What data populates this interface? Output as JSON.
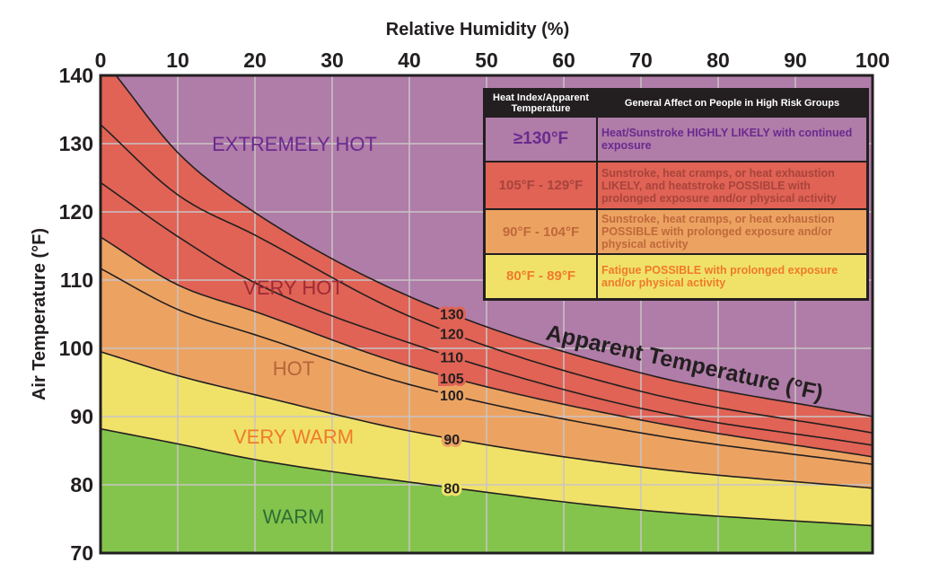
{
  "chart_data": {
    "type": "line",
    "title": "",
    "xlabel": "Relative Humidity (%)",
    "ylabel": "Air Temperature (°F)",
    "xlim": [
      0,
      100
    ],
    "ylim": [
      70,
      140
    ],
    "xticks": [
      "0",
      "10",
      "20",
      "30",
      "40",
      "50",
      "60",
      "70",
      "80",
      "90",
      "100"
    ],
    "yticks": [
      "70",
      "80",
      "90",
      "100",
      "110",
      "120",
      "130",
      "140"
    ],
    "grid": true,
    "annotation": "Apparent Temperature (°F)",
    "series": [
      {
        "name": "130",
        "x": [
          2,
          10,
          20,
          40,
          70,
          100
        ],
        "y": [
          140,
          128.7,
          119.9,
          107.6,
          96.4,
          90.0
        ]
      },
      {
        "name": "120",
        "x": [
          0,
          10,
          20,
          40,
          70,
          100
        ],
        "y": [
          132.8,
          122.5,
          116.6,
          104.7,
          93.7,
          87.6
        ]
      },
      {
        "name": "110",
        "x": [
          0,
          10,
          20,
          40,
          70,
          100
        ],
        "y": [
          124.3,
          116.4,
          109.6,
          100.8,
          91.2,
          85.8
        ]
      },
      {
        "name": "105",
        "x": [
          0,
          10,
          20,
          40,
          70,
          100
        ],
        "y": [
          116.3,
          109.3,
          105.4,
          97.4,
          89.5,
          84.1
        ]
      },
      {
        "name": "100",
        "x": [
          0,
          10,
          20,
          40,
          70,
          100
        ],
        "y": [
          111.7,
          105.7,
          102.0,
          94.7,
          87.6,
          83.0
        ]
      },
      {
        "name": "90",
        "x": [
          0,
          10,
          20,
          40,
          70,
          100
        ],
        "y": [
          99.5,
          96.0,
          93.2,
          87.9,
          82.6,
          79.5
        ]
      },
      {
        "name": "80",
        "x": [
          0,
          10,
          20,
          40,
          70,
          100
        ],
        "y": [
          88.2,
          86.0,
          83.7,
          80.4,
          76.3,
          74.0
        ]
      }
    ],
    "zones": [
      {
        "label": "EXTREMELY HOT",
        "fill": "#b07ca8",
        "text_color": "#6a2a8f"
      },
      {
        "label": "VERY HOT",
        "fill": "#e06355",
        "text_color": "#9e2a35"
      },
      {
        "label": "HOT",
        "fill": "#eca362",
        "text_color": "#b8643a"
      },
      {
        "label": "VERY WARM",
        "fill": "#f0e269",
        "text_color": "#f07a2a"
      },
      {
        "label": "WARM",
        "fill": "#84c44c",
        "text_color": "#2f6e35"
      }
    ]
  },
  "legend_table": {
    "headers": [
      "Heat Index/Apparent Temperature",
      "General Affect on People in High Risk Groups"
    ],
    "rows": [
      {
        "range": "≥130°F",
        "effect": "Heat/Sunstroke HIGHLY LIKELY with continued exposure",
        "bg": "#b07ca8",
        "color": "#6a2a8f"
      },
      {
        "range": "105°F - 129°F",
        "effect": "Sunstroke, heat cramps, or heat exhaustion LIKELY, and heatstroke POSSIBLE with prolonged exposure and/or physical activity",
        "bg": "#e06355",
        "color": "#a8443c"
      },
      {
        "range": "90°F - 104°F",
        "effect": "Sunstroke, heat cramps, or heat exhaustion POSSIBLE with prolonged exposure and/or physical activity",
        "bg": "#eca362",
        "color": "#c0683a"
      },
      {
        "range": "80°F - 89°F",
        "effect": "Fatigue POSSIBLE with prolonged exposure and/or physical activity",
        "bg": "#f0e269",
        "color": "#f07a2a"
      }
    ]
  }
}
